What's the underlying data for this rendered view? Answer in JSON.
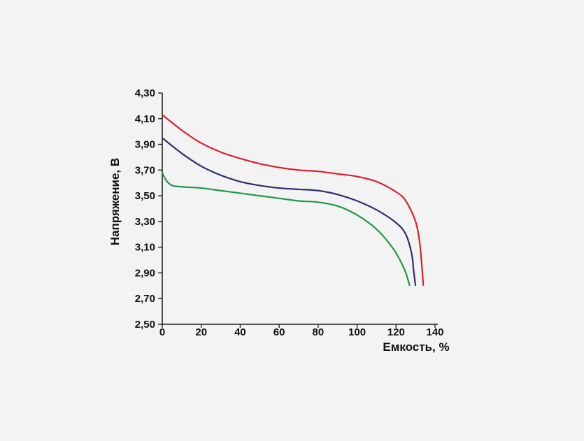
{
  "chart_data": {
    "type": "line",
    "title": "",
    "xlabel": "Емкость, %",
    "ylabel": "Напряжение, В",
    "xlim": [
      0,
      140
    ],
    "ylim": [
      2.5,
      4.3
    ],
    "x_ticks": [
      "0",
      "20",
      "40",
      "60",
      "80",
      "100",
      "120",
      "140"
    ],
    "y_ticks": [
      "2,50",
      "2,70",
      "2,90",
      "3,10",
      "3,30",
      "3,50",
      "3,70",
      "3,90",
      "4,10",
      "4,30"
    ],
    "grid": false,
    "legend": "none",
    "series": [
      {
        "color": "#d8222f",
        "points": [
          [
            0,
            4.13
          ],
          [
            10,
            4.01
          ],
          [
            20,
            3.91
          ],
          [
            30,
            3.84
          ],
          [
            40,
            3.79
          ],
          [
            50,
            3.75
          ],
          [
            60,
            3.72
          ],
          [
            70,
            3.7
          ],
          [
            80,
            3.69
          ],
          [
            90,
            3.67
          ],
          [
            100,
            3.65
          ],
          [
            110,
            3.61
          ],
          [
            120,
            3.53
          ],
          [
            125,
            3.46
          ],
          [
            130,
            3.3
          ],
          [
            132,
            3.15
          ],
          [
            133,
            3.0
          ],
          [
            134,
            2.8
          ]
        ]
      },
      {
        "color": "#2f2f6e",
        "points": [
          [
            0,
            3.95
          ],
          [
            10,
            3.83
          ],
          [
            20,
            3.73
          ],
          [
            30,
            3.66
          ],
          [
            40,
            3.61
          ],
          [
            50,
            3.58
          ],
          [
            60,
            3.56
          ],
          [
            70,
            3.55
          ],
          [
            80,
            3.54
          ],
          [
            90,
            3.51
          ],
          [
            100,
            3.46
          ],
          [
            110,
            3.39
          ],
          [
            120,
            3.29
          ],
          [
            125,
            3.2
          ],
          [
            128,
            3.05
          ],
          [
            129,
            2.92
          ],
          [
            130,
            2.8
          ]
        ]
      },
      {
        "color": "#1f9a47",
        "points": [
          [
            0,
            3.68
          ],
          [
            2,
            3.62
          ],
          [
            5,
            3.58
          ],
          [
            10,
            3.57
          ],
          [
            20,
            3.56
          ],
          [
            30,
            3.54
          ],
          [
            40,
            3.52
          ],
          [
            50,
            3.5
          ],
          [
            60,
            3.48
          ],
          [
            70,
            3.46
          ],
          [
            80,
            3.45
          ],
          [
            90,
            3.42
          ],
          [
            100,
            3.35
          ],
          [
            110,
            3.24
          ],
          [
            118,
            3.1
          ],
          [
            122,
            3.0
          ],
          [
            125,
            2.9
          ],
          [
            127,
            2.8
          ]
        ]
      }
    ]
  }
}
